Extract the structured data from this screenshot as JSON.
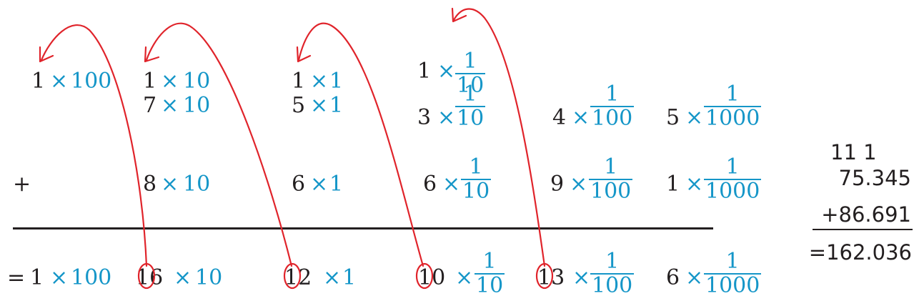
{
  "colors": {
    "black": "#231f20",
    "blue": "#1596c8",
    "red": "#e0242b"
  },
  "terms": {
    "r1_hundreds": {
      "coef": "1",
      "op": "×",
      "base": "100"
    },
    "r1_tens": {
      "coef": "1",
      "op": "×",
      "base": "10"
    },
    "r1_ones": {
      "coef": "1",
      "op": "×",
      "base": "1"
    },
    "r0_tenths": {
      "coef": "1",
      "op": "×",
      "num": "1",
      "den": "10"
    },
    "a_tens": {
      "coef": "7",
      "op": "×",
      "base": "10"
    },
    "a_ones": {
      "coef": "5",
      "op": "×",
      "base": "1"
    },
    "a_tenths": {
      "coef": "3",
      "op": "×",
      "num": "1",
      "den": "10"
    },
    "a_hundredths": {
      "coef": "4",
      "op": "×",
      "num": "1",
      "den": "100"
    },
    "a_thousandths": {
      "coef": "5",
      "op": "×",
      "num": "1",
      "den": "1000"
    },
    "b_plus": "+",
    "b_tens": {
      "coef": "8",
      "op": "×",
      "base": "10"
    },
    "b_ones": {
      "coef": "6",
      "op": "×",
      "base": "1"
    },
    "b_tenths": {
      "coef": "6",
      "op": "×",
      "num": "1",
      "den": "10"
    },
    "b_hundredths": {
      "coef": "9",
      "op": "×",
      "num": "1",
      "den": "100"
    },
    "b_thousandths": {
      "coef": "1",
      "op": "×",
      "num": "1",
      "den": "1000"
    },
    "res_eq": "=",
    "res_hundreds": {
      "coef": "1",
      "op": "×",
      "base": "100"
    },
    "res_tens": {
      "coef": "16",
      "op": "×",
      "base": "10"
    },
    "res_ones": {
      "coef": "12",
      "op": "×",
      "base": "1"
    },
    "res_tenths": {
      "coef": "10",
      "op": "×",
      "num": "1",
      "den": "10"
    },
    "res_hundredths": {
      "coef": "13",
      "op": "×",
      "num": "1",
      "den": "100"
    },
    "res_thousandths": {
      "coef": "6",
      "op": "×",
      "num": "1",
      "den": "1000"
    }
  },
  "column_sum": {
    "carries": "11 1",
    "addend1": "75.345",
    "addend2": "+86.691",
    "result": "=162.036"
  }
}
